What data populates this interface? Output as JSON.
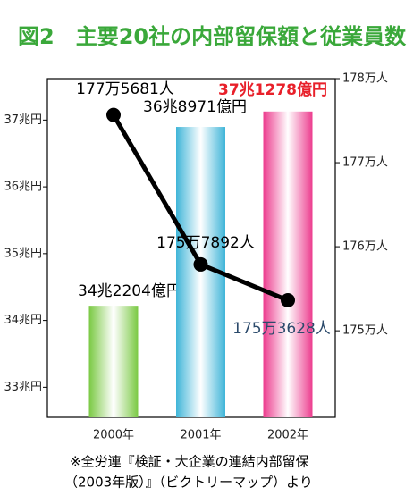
{
  "chart_data": {
    "type": "combo",
    "title": "図2　主要20社の内部留保額と従業員数",
    "title_color": "#3aa83a",
    "categories": [
      "2000年",
      "2001年",
      "2002年"
    ],
    "ylim": [
      32.55,
      37.62
    ],
    "yticks": [
      {
        "value": 33,
        "label": "33兆円"
      },
      {
        "value": 34,
        "label": "34兆円"
      },
      {
        "value": 35,
        "label": "35兆円"
      },
      {
        "value": 36,
        "label": "36兆円"
      },
      {
        "value": 37,
        "label": "37兆円"
      }
    ],
    "y2lim": [
      173.97,
      178
    ],
    "y2ticks": [
      {
        "value": 175,
        "label": "175万人"
      },
      {
        "value": 176,
        "label": "176万人"
      },
      {
        "value": 177,
        "label": "177万人"
      },
      {
        "value": 178,
        "label": "178万人"
      }
    ],
    "series": [
      {
        "type": "bar",
        "colors": [
          "#7ac943",
          "#3fb5d8",
          "#ec3c8e"
        ],
        "values": [
          34.2204,
          36.8971,
          37.1278
        ],
        "value_labels": [
          "34兆2204億円",
          "36兆8971億円",
          "37兆1278億円"
        ],
        "label_colors": [
          "#000000",
          "#000000",
          "#e8202a"
        ]
      },
      {
        "type": "line",
        "axis": "y2",
        "color": "#000000",
        "values": [
          177.5681,
          175.7892,
          175.3628
        ],
        "value_labels": [
          "177万5681人",
          "175万7892人",
          "175万3628人"
        ],
        "label_colors": [
          "#000000",
          "#000000",
          "#2b4a6b"
        ]
      }
    ],
    "note": [
      "※全労連『検証・大企業の連結内部留保",
      "（2003年版）』（ビクトリーマップ）より"
    ]
  }
}
